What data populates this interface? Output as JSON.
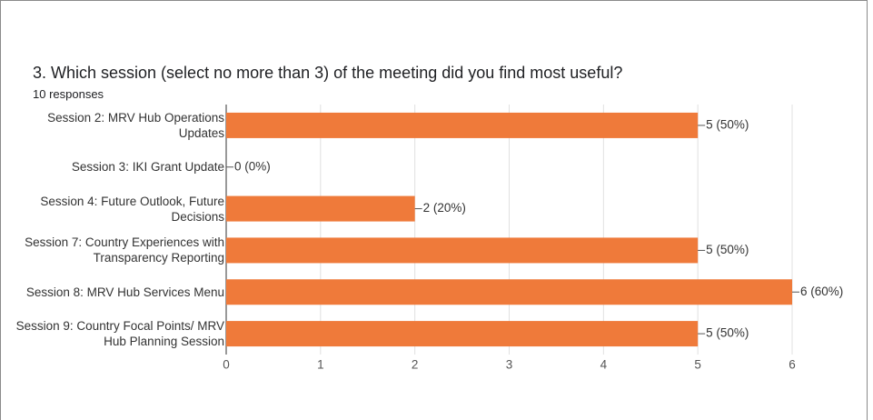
{
  "chart_data": {
    "type": "bar",
    "orientation": "horizontal",
    "title": "3.  Which session (select no more than 3) of the meeting did you find most useful?",
    "subtitle": "10 responses",
    "categories": [
      "Session 2: MRV Hub Operations Updates",
      "Session 3: IKI Grant Update",
      "Session 4: Future Outlook, Future Decisions",
      "Session 7: Country Experiences with Transparency Reporting",
      "Session 8: MRV Hub Services Menu",
      "Session 9: Country Focal Points/ MRV Hub Planning Session"
    ],
    "values": [
      5,
      0,
      2,
      5,
      6,
      5
    ],
    "value_labels": [
      "5 (50%)",
      "0 (0%)",
      "2 (20%)",
      "5 (50%)",
      "6 (60%)",
      "5 (50%)"
    ],
    "color": "#ef7a3a",
    "xlim": [
      0,
      6
    ],
    "xticks": [
      0,
      1,
      2,
      3,
      4,
      5,
      6
    ],
    "grid": true
  }
}
